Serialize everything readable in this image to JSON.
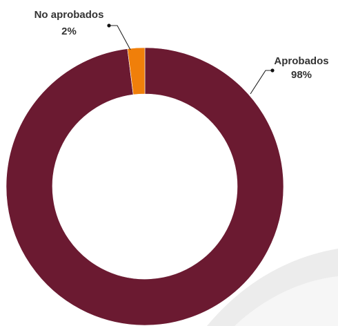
{
  "chart_data": {
    "type": "pie",
    "variant": "donut",
    "categories": [
      "Aprobados",
      "No aprobados"
    ],
    "values": [
      98,
      2
    ],
    "value_labels": [
      "98%",
      "2%"
    ],
    "colors": [
      "#6b1a31",
      "#f07f0a"
    ],
    "title": "",
    "legend": "none"
  }
}
